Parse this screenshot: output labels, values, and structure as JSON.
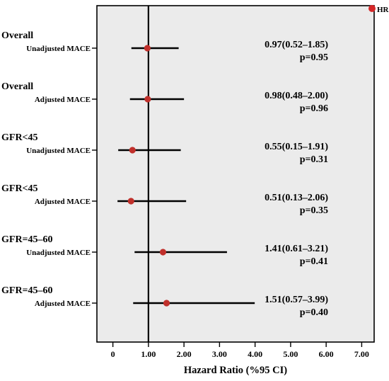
{
  "chart_data": {
    "type": "forest",
    "xlabel": "Hazard Ratio (%95 CI)",
    "xlim": [
      -0.45,
      7.35
    ],
    "x_ticks": [
      0,
      1.0,
      2.0,
      3.0,
      4.0,
      5.0,
      6.0,
      7.0
    ],
    "x_tick_labels": [
      "0",
      "1.00",
      "2.00",
      "3.00",
      "4.00",
      "5.00",
      "6.00",
      "7.00"
    ],
    "reference_line": 1.0,
    "legend": {
      "label": "HR",
      "marker_color": "#d62728",
      "placement": "top-right"
    },
    "marker_color": "#c0302b",
    "background_color": "#ebebeb",
    "rows": [
      {
        "group": "Overall",
        "label": "Unadjusted MACE",
        "hr": 0.97,
        "ci_low": 0.52,
        "ci_high": 1.85,
        "hr_text": "0.97(0.52–1.85)",
        "p_text": "p=0.95"
      },
      {
        "group": "Overall",
        "label": "Adjusted MACE",
        "hr": 0.98,
        "ci_low": 0.48,
        "ci_high": 2.0,
        "hr_text": "0.98(0.48–2.00)",
        "p_text": "p=0.96"
      },
      {
        "group": "GFR<45",
        "label": "Unadjusted MACE",
        "hr": 0.55,
        "ci_low": 0.15,
        "ci_high": 1.91,
        "hr_text": "0.55(0.15–1.91)",
        "p_text": "p=0.31"
      },
      {
        "group": "GFR<45",
        "label": "Adjusted MACE",
        "hr": 0.51,
        "ci_low": 0.13,
        "ci_high": 2.06,
        "hr_text": "0.51(0.13–2.06)",
        "p_text": "p=0.35"
      },
      {
        "group": "GFR=45–60",
        "label": "Unadjusted MACE",
        "hr": 1.41,
        "ci_low": 0.61,
        "ci_high": 3.21,
        "hr_text": "1.41(0.61–3.21)",
        "p_text": "p=0.41"
      },
      {
        "group": "GFR=45–60",
        "label": "Adjusted MACE",
        "hr": 1.51,
        "ci_low": 0.57,
        "ci_high": 3.99,
        "hr_text": "1.51(0.57–3.99)",
        "p_text": "p=0.40"
      }
    ]
  }
}
